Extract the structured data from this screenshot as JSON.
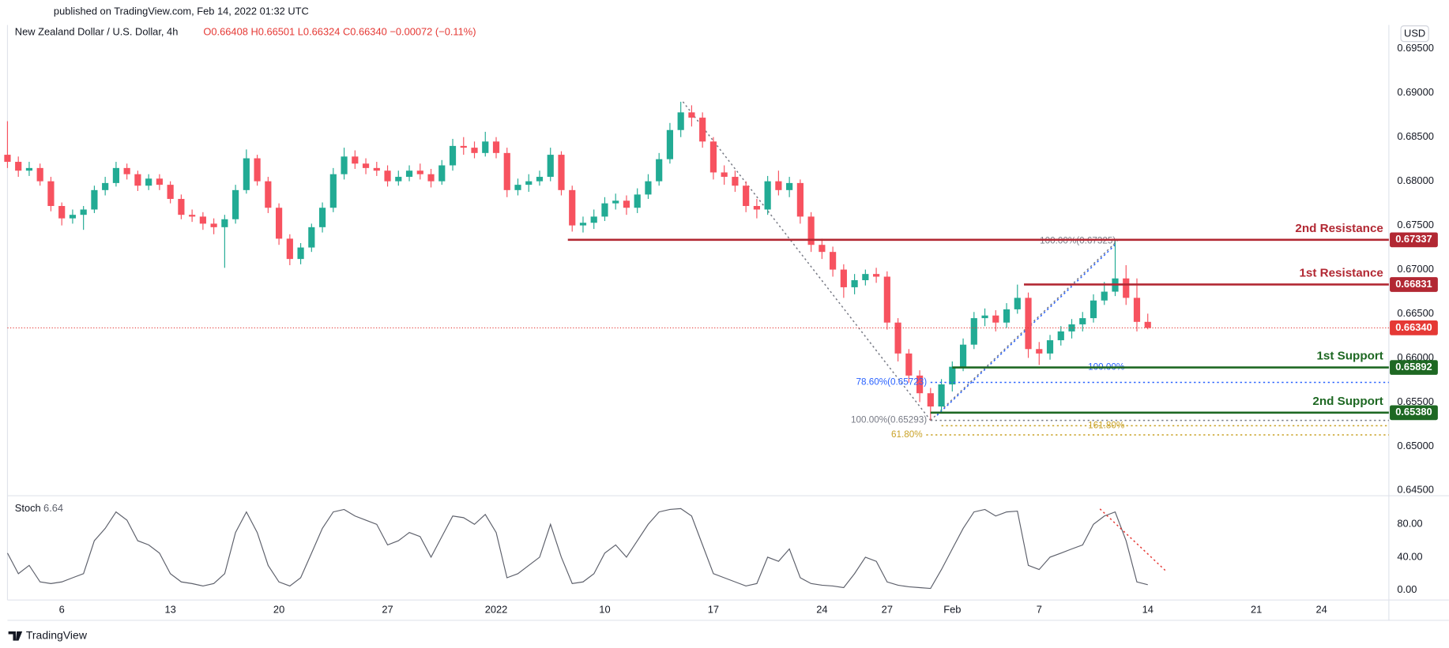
{
  "header": {
    "published": "published on TradingView.com, Feb 14, 2022 01:32 UTC",
    "brand": "TradingView",
    "currency_button": "USD"
  },
  "chart_data": [
    {
      "type": "candlestick",
      "title": "New Zealand Dollar / U.S. Dollar, 4h",
      "ohlc_text": "O0.66408  H0.66501  L0.66324  C0.66340  −0.00072 (−0.11%)",
      "up_color": "#22ab94",
      "down_color": "#f7525f",
      "x": [
        -2.5,
        -2,
        -1.5,
        -1,
        -0.5,
        0,
        0.5,
        1,
        1.5,
        2,
        2.5,
        3,
        3.5,
        4,
        4.5,
        5,
        5.5,
        6,
        6.5,
        7,
        7.5,
        8,
        8.5,
        9,
        9.5,
        10,
        10.5,
        11,
        11.5,
        12,
        12.5,
        13,
        13.5,
        14,
        14.5,
        15,
        15.5,
        16,
        16.5,
        17,
        17.5,
        18,
        18.5,
        19,
        19.5,
        20,
        20.5,
        21,
        21.5,
        22,
        22.5,
        23,
        23.5,
        24,
        24.5,
        25,
        25.5,
        26,
        26.5,
        27,
        27.5,
        28,
        28.5,
        29,
        29.5,
        30,
        30.5,
        31,
        31.5,
        32,
        32.5,
        33,
        33.5,
        34,
        34.5,
        35,
        35.5,
        36,
        36.5,
        37,
        37.5,
        38,
        38.5,
        39,
        39.5,
        40,
        40.5,
        41,
        41.5,
        42,
        42.5,
        43,
        43.5,
        44,
        44.5,
        45,
        45.5,
        46,
        46.5,
        47,
        47.5,
        48,
        48.5,
        49,
        49.5,
        50
      ],
      "open": [
        0.683,
        0.6822,
        0.6812,
        0.6815,
        0.68,
        0.6772,
        0.6758,
        0.6762,
        0.6768,
        0.679,
        0.6798,
        0.6815,
        0.6808,
        0.6795,
        0.6803,
        0.6796,
        0.678,
        0.6762,
        0.676,
        0.6752,
        0.6748,
        0.6757,
        0.679,
        0.6826,
        0.68,
        0.677,
        0.6735,
        0.6712,
        0.6725,
        0.6748,
        0.677,
        0.6808,
        0.6828,
        0.682,
        0.6815,
        0.6812,
        0.68,
        0.6805,
        0.6812,
        0.6808,
        0.68,
        0.6818,
        0.684,
        0.6838,
        0.6832,
        0.6845,
        0.6832,
        0.679,
        0.6796,
        0.68,
        0.6805,
        0.683,
        0.679,
        0.675,
        0.6753,
        0.676,
        0.6775,
        0.6778,
        0.677,
        0.6785,
        0.68,
        0.6825,
        0.6858,
        0.6878,
        0.6872,
        0.6845,
        0.681,
        0.6805,
        0.6795,
        0.6772,
        0.6768,
        0.68,
        0.679,
        0.6798,
        0.676,
        0.6728,
        0.672,
        0.67,
        0.668,
        0.6688,
        0.6695,
        0.6692,
        0.664,
        0.6605,
        0.658,
        0.656,
        0.6545,
        0.657,
        0.659,
        0.6615,
        0.6645,
        0.6648,
        0.664,
        0.6655,
        0.6668,
        0.661,
        0.6605,
        0.662,
        0.663,
        0.6638,
        0.6645,
        0.6665,
        0.6675,
        0.669,
        0.6668,
        0.66408
      ],
      "high": [
        0.6868,
        0.6828,
        0.6822,
        0.682,
        0.6805,
        0.6776,
        0.6768,
        0.6772,
        0.6795,
        0.6805,
        0.6822,
        0.682,
        0.6812,
        0.6808,
        0.6808,
        0.68,
        0.6785,
        0.6768,
        0.6765,
        0.6758,
        0.6762,
        0.6796,
        0.6836,
        0.683,
        0.6805,
        0.6775,
        0.674,
        0.673,
        0.6752,
        0.6776,
        0.6815,
        0.6838,
        0.6835,
        0.6826,
        0.6822,
        0.6818,
        0.6812,
        0.6818,
        0.682,
        0.6814,
        0.6824,
        0.6848,
        0.685,
        0.6845,
        0.6856,
        0.685,
        0.6838,
        0.6803,
        0.6808,
        0.6812,
        0.6838,
        0.6834,
        0.6795,
        0.676,
        0.6768,
        0.6782,
        0.6786,
        0.6784,
        0.6792,
        0.6808,
        0.6832,
        0.6866,
        0.689,
        0.6886,
        0.6878,
        0.685,
        0.6818,
        0.6812,
        0.68,
        0.678,
        0.6806,
        0.6812,
        0.6805,
        0.6802,
        0.6765,
        0.6735,
        0.6726,
        0.6706,
        0.6695,
        0.67,
        0.6702,
        0.6698,
        0.6645,
        0.661,
        0.6586,
        0.6566,
        0.6576,
        0.6596,
        0.6622,
        0.6652,
        0.6656,
        0.6654,
        0.6662,
        0.6683,
        0.6674,
        0.6618,
        0.6626,
        0.6636,
        0.6644,
        0.6652,
        0.6672,
        0.6686,
        0.67325,
        0.6705,
        0.669,
        0.66501
      ],
      "low": [
        0.6815,
        0.6805,
        0.6806,
        0.6795,
        0.6766,
        0.675,
        0.6752,
        0.6745,
        0.6764,
        0.6784,
        0.6794,
        0.6802,
        0.6789,
        0.679,
        0.679,
        0.6775,
        0.6757,
        0.6754,
        0.6745,
        0.674,
        0.6702,
        0.6752,
        0.6786,
        0.6795,
        0.6764,
        0.6728,
        0.6705,
        0.6706,
        0.672,
        0.6742,
        0.6765,
        0.6802,
        0.6814,
        0.6808,
        0.6806,
        0.6794,
        0.6795,
        0.68,
        0.6802,
        0.6793,
        0.6796,
        0.6812,
        0.683,
        0.6826,
        0.6828,
        0.6826,
        0.6782,
        0.6784,
        0.6788,
        0.6795,
        0.68,
        0.6784,
        0.6743,
        0.6742,
        0.6746,
        0.6755,
        0.6768,
        0.6762,
        0.6764,
        0.678,
        0.6795,
        0.682,
        0.685,
        0.6862,
        0.6838,
        0.6802,
        0.6796,
        0.6788,
        0.6765,
        0.6758,
        0.6762,
        0.6784,
        0.6782,
        0.6752,
        0.672,
        0.6712,
        0.6692,
        0.6668,
        0.6672,
        0.6682,
        0.6685,
        0.6632,
        0.6596,
        0.6572,
        0.655,
        0.6529,
        0.654,
        0.6562,
        0.6585,
        0.661,
        0.6636,
        0.663,
        0.6634,
        0.665,
        0.66,
        0.6592,
        0.6598,
        0.6614,
        0.6622,
        0.663,
        0.664,
        0.666,
        0.667,
        0.666,
        0.663,
        0.66324
      ],
      "close": [
        0.6822,
        0.6812,
        0.6815,
        0.68,
        0.6772,
        0.6758,
        0.6762,
        0.6768,
        0.679,
        0.6798,
        0.6815,
        0.6808,
        0.6795,
        0.6803,
        0.6796,
        0.678,
        0.6762,
        0.676,
        0.6752,
        0.6748,
        0.6757,
        0.679,
        0.6826,
        0.68,
        0.677,
        0.6735,
        0.6712,
        0.6725,
        0.6748,
        0.677,
        0.6808,
        0.6828,
        0.682,
        0.6815,
        0.6812,
        0.68,
        0.6805,
        0.6812,
        0.6808,
        0.68,
        0.6818,
        0.684,
        0.6838,
        0.6832,
        0.6845,
        0.6832,
        0.679,
        0.6796,
        0.68,
        0.6805,
        0.683,
        0.679,
        0.675,
        0.6753,
        0.676,
        0.6775,
        0.6778,
        0.677,
        0.6785,
        0.68,
        0.6825,
        0.6858,
        0.6878,
        0.6872,
        0.6845,
        0.681,
        0.6805,
        0.6795,
        0.6772,
        0.6768,
        0.68,
        0.679,
        0.6798,
        0.676,
        0.6728,
        0.672,
        0.67,
        0.668,
        0.6688,
        0.6695,
        0.6692,
        0.664,
        0.6605,
        0.658,
        0.656,
        0.6545,
        0.657,
        0.659,
        0.6615,
        0.6645,
        0.6648,
        0.664,
        0.6655,
        0.6668,
        0.661,
        0.6605,
        0.662,
        0.663,
        0.6638,
        0.6645,
        0.6665,
        0.6675,
        0.669,
        0.6668,
        0.66408,
        0.6634
      ],
      "xlim": [
        -2.5,
        61.1
      ],
      "ylim": [
        0.6444,
        0.6977
      ],
      "yticks": [
        {
          "value": 0.695,
          "label": "0.69500"
        },
        {
          "value": 0.69,
          "label": "0.69000"
        },
        {
          "value": 0.685,
          "label": "0.68500"
        },
        {
          "value": 0.68,
          "label": "0.68000"
        },
        {
          "value": 0.675,
          "label": "0.67500"
        },
        {
          "value": 0.67,
          "label": "0.67000"
        },
        {
          "value": 0.665,
          "label": "0.66500"
        },
        {
          "value": 0.66,
          "label": "0.66000"
        },
        {
          "value": 0.655,
          "label": "0.65500"
        },
        {
          "value": 0.65,
          "label": "0.65000"
        },
        {
          "value": 0.645,
          "label": "0.64500"
        }
      ],
      "grid": false,
      "levels": [
        {
          "name": "2nd Resistance",
          "value": 0.67337,
          "value_label": "0.67337",
          "from": 23.3,
          "color": "#b22833"
        },
        {
          "name": "1st Resistance",
          "value": 0.66831,
          "value_label": "0.66831",
          "from": 44.3,
          "color": "#b22833"
        },
        {
          "name": "1st Support",
          "value": 0.65892,
          "value_label": "0.65892",
          "from": 41.0,
          "color": "#1e6823"
        },
        {
          "name": "2nd Support",
          "value": 0.6538,
          "value_label": "0.65380",
          "from": 40.0,
          "color": "#1e6823"
        }
      ],
      "last_price": {
        "value": 0.6634,
        "label": "0.66340",
        "color": "#e53935"
      },
      "annotations": [
        {
          "label": "100.00%(0.67325)",
          "value": 0.67325,
          "label_x": 48.7,
          "color": "#787b86"
        },
        {
          "label": "78.60%(0.65723)",
          "value": 0.65723,
          "label_x": 40.0,
          "from": 40.0,
          "color": "#2962ff"
        },
        {
          "label": "100.00%",
          "value": 0.65892,
          "label_x": 49.1,
          "color": "#2962ff"
        },
        {
          "label": "100.00%(0.65293)",
          "value": 0.65293,
          "label_x": 40.0,
          "from": 40.0,
          "color": "#787b86"
        },
        {
          "label": "161.80%",
          "value": 0.65232,
          "label_x": 49.1,
          "from": 40.5,
          "color": "#c9a227"
        },
        {
          "label": "61.80%",
          "value": 0.65128,
          "label_x": 39.8,
          "from": 39.8,
          "color": "#c9a227"
        }
      ],
      "trendlines": [
        {
          "points": [
            [
              28.6,
              0.689
            ],
            [
              40.0,
              0.65293
            ]
          ],
          "color": "#787b86"
        },
        {
          "points": [
            [
              40.0,
              0.65293
            ],
            [
              48.6,
              0.67325
            ]
          ],
          "color": "#787b86"
        },
        {
          "points": [
            [
              40.3,
              0.6535
            ],
            [
              48.5,
              0.6728
            ]
          ],
          "color": "#2962ff"
        }
      ]
    },
    {
      "type": "line",
      "title": "Stoch",
      "color": "#5d606b",
      "x": [
        -2.5,
        -2,
        -1.5,
        -1,
        -0.5,
        0,
        0.5,
        1,
        1.5,
        2,
        2.5,
        3,
        3.5,
        4,
        4.5,
        5,
        5.5,
        6,
        6.5,
        7,
        7.5,
        8,
        8.5,
        9,
        9.5,
        10,
        10.5,
        11,
        11.5,
        12,
        12.5,
        13,
        13.5,
        14,
        14.5,
        15,
        15.5,
        16,
        16.5,
        17,
        17.5,
        18,
        18.5,
        19,
        19.5,
        20,
        20.5,
        21,
        21.5,
        22,
        22.5,
        23,
        23.5,
        24,
        24.5,
        25,
        25.5,
        26,
        26.5,
        27,
        27.5,
        28,
        28.5,
        29,
        29.5,
        30,
        30.5,
        31,
        31.5,
        32,
        32.5,
        33,
        33.5,
        34,
        34.5,
        35,
        35.5,
        36,
        36.5,
        37,
        37.5,
        38,
        38.5,
        39,
        39.5,
        40,
        40.5,
        41,
        41.5,
        42,
        42.5,
        43,
        43.5,
        44,
        44.5,
        45,
        45.5,
        46,
        46.5,
        47,
        47.5,
        48,
        48.5,
        49,
        49.5,
        50
      ],
      "values": [
        45,
        20,
        30,
        10,
        8,
        10,
        15,
        20,
        60,
        75,
        95,
        85,
        60,
        55,
        45,
        20,
        10,
        8,
        5,
        8,
        20,
        70,
        95,
        70,
        30,
        10,
        5,
        15,
        45,
        75,
        95,
        98,
        90,
        85,
        80,
        55,
        60,
        70,
        65,
        40,
        65,
        90,
        88,
        80,
        92,
        70,
        15,
        20,
        30,
        40,
        80,
        40,
        8,
        10,
        20,
        45,
        55,
        40,
        60,
        80,
        95,
        98,
        99,
        90,
        55,
        20,
        15,
        10,
        5,
        8,
        40,
        35,
        50,
        15,
        8,
        6,
        5,
        3,
        20,
        40,
        35,
        10,
        6,
        4,
        3,
        2,
        25,
        50,
        75,
        95,
        98,
        90,
        95,
        96,
        30,
        25,
        40,
        45,
        50,
        55,
        80,
        90,
        95,
        60,
        10,
        6.64
      ],
      "xlim": [
        -2.5,
        61.1
      ],
      "ylim": [
        -12,
        108
      ],
      "yticks": [
        {
          "value": 80,
          "label": "80.00"
        },
        {
          "value": 40,
          "label": "40.00"
        },
        {
          "value": 0,
          "label": "0.00"
        }
      ],
      "xticks": [
        {
          "value": 0,
          "label": "6"
        },
        {
          "value": 5,
          "label": "13"
        },
        {
          "value": 10,
          "label": "20"
        },
        {
          "value": 15,
          "label": "27"
        },
        {
          "value": 20,
          "label": "2022"
        },
        {
          "value": 25,
          "label": "10"
        },
        {
          "value": 30,
          "label": "17"
        },
        {
          "value": 35,
          "label": "24"
        },
        {
          "value": 38,
          "label": "27"
        },
        {
          "value": 41,
          "label": "Feb"
        },
        {
          "value": 45,
          "label": "7"
        },
        {
          "value": 50,
          "label": "14"
        },
        {
          "value": 55,
          "label": "21"
        },
        {
          "value": 58,
          "label": "24"
        }
      ],
      "trendlines": [
        {
          "points": [
            [
              47.8,
              98.6
            ],
            [
              50.8,
              24.1
            ]
          ],
          "color": "#e53935"
        }
      ]
    }
  ]
}
